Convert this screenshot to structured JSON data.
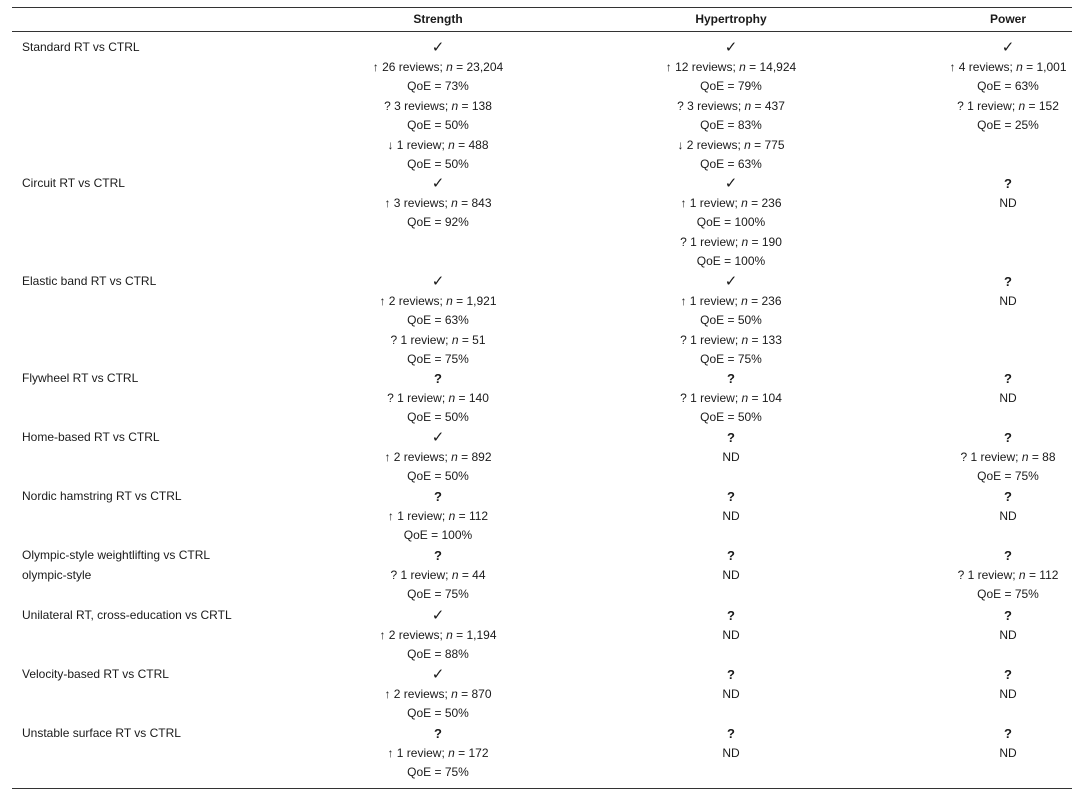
{
  "columns": [
    "Strength",
    "Hypertrophy",
    "Power"
  ],
  "rows": [
    {
      "label": [
        "Standard RT vs CTRL"
      ],
      "cells": [
        {
          "mark": "✓",
          "lines": [
            {
              "pre": "↑ 26 reviews; ",
              "n": "n",
              "post": " = 23,204"
            },
            {
              "text": "QoE = 73%"
            },
            {
              "pre": "? 3 reviews; ",
              "n": "n",
              "post": " = 138"
            },
            {
              "text": "QoE = 50%"
            },
            {
              "pre": "↓ 1 review; ",
              "n": "n",
              "post": " = 488"
            },
            {
              "text": "QoE = 50%"
            }
          ]
        },
        {
          "mark": "✓",
          "lines": [
            {
              "pre": "↑ 12 reviews; ",
              "n": "n",
              "post": " = 14,924"
            },
            {
              "text": "QoE = 79%"
            },
            {
              "pre": "? 3 reviews; ",
              "n": "n",
              "post": " = 437"
            },
            {
              "text": "QoE = 83%"
            },
            {
              "pre": "↓ 2 reviews; ",
              "n": "n",
              "post": " = 775"
            },
            {
              "text": "QoE = 63%"
            }
          ]
        },
        {
          "mark": "✓",
          "lines": [
            {
              "pre": "↑ 4 reviews; ",
              "n": "n",
              "post": " = 1,001"
            },
            {
              "text": "QoE = 63%"
            },
            {
              "pre": "? 1 review; ",
              "n": "n",
              "post": " = 152"
            },
            {
              "text": "QoE = 25%"
            }
          ]
        }
      ]
    },
    {
      "label": [
        "Circuit RT vs CTRL"
      ],
      "cells": [
        {
          "mark": "✓",
          "lines": [
            {
              "pre": "↑ 3 reviews; ",
              "n": "n",
              "post": " = 843"
            },
            {
              "text": "QoE = 92%"
            }
          ]
        },
        {
          "mark": "✓",
          "lines": [
            {
              "pre": "↑ 1 review; ",
              "n": "n",
              "post": " = 236"
            },
            {
              "text": "QoE = 100%"
            },
            {
              "pre": "? 1 review; ",
              "n": "n",
              "post": " = 190"
            },
            {
              "text": "QoE = 100%"
            }
          ]
        },
        {
          "mark": "?",
          "lines": [
            {
              "text": "ND"
            }
          ]
        }
      ]
    },
    {
      "label": [
        "Elastic band RT vs CTRL"
      ],
      "cells": [
        {
          "mark": "✓",
          "lines": [
            {
              "pre": "↑ 2 reviews; ",
              "n": "n",
              "post": " = 1,921"
            },
            {
              "text": "QoE = 63%"
            },
            {
              "pre": "? 1 review; ",
              "n": "n",
              "post": " = 51"
            },
            {
              "text": "QoE = 75%"
            }
          ]
        },
        {
          "mark": "✓",
          "lines": [
            {
              "pre": "↑ 1 review; ",
              "n": "n",
              "post": " = 236"
            },
            {
              "text": "QoE = 50%"
            },
            {
              "pre": "? 1 review; ",
              "n": "n",
              "post": " = 133"
            },
            {
              "text": "QoE = 75%"
            }
          ]
        },
        {
          "mark": "?",
          "lines": [
            {
              "text": "ND"
            }
          ]
        }
      ]
    },
    {
      "label": [
        "Flywheel RT vs CTRL"
      ],
      "cells": [
        {
          "mark": "?",
          "lines": [
            {
              "pre": "? 1 review; ",
              "n": "n",
              "post": " = 140"
            },
            {
              "text": "QoE = 50%"
            }
          ]
        },
        {
          "mark": "?",
          "lines": [
            {
              "pre": "? 1 review; ",
              "n": "n",
              "post": " = 104"
            },
            {
              "text": "QoE = 50%"
            }
          ]
        },
        {
          "mark": "?",
          "lines": [
            {
              "text": "ND"
            }
          ]
        }
      ]
    },
    {
      "label": [
        "Home-based RT vs CTRL"
      ],
      "cells": [
        {
          "mark": "✓",
          "lines": [
            {
              "pre": "↑ 2 reviews; ",
              "n": "n",
              "post": " = 892"
            },
            {
              "text": "QoE = 50%"
            }
          ]
        },
        {
          "mark": "?",
          "lines": [
            {
              "text": "ND"
            }
          ]
        },
        {
          "mark": "?",
          "lines": [
            {
              "pre": "? 1 review; ",
              "n": "n",
              "post": " = 88"
            },
            {
              "text": "QoE = 75%"
            }
          ]
        }
      ]
    },
    {
      "label": [
        "Nordic hamstring RT vs CTRL"
      ],
      "cells": [
        {
          "mark": "?",
          "lines": [
            {
              "pre": "↑ 1 review; ",
              "n": "n",
              "post": " = 112"
            },
            {
              "text": "QoE = 100%"
            }
          ]
        },
        {
          "mark": "?",
          "lines": [
            {
              "text": "ND"
            }
          ]
        },
        {
          "mark": "?",
          "lines": [
            {
              "text": "ND"
            }
          ]
        }
      ]
    },
    {
      "label": [
        "Olympic-style weightlifting vs CTRL",
        "olympic-style"
      ],
      "cells": [
        {
          "mark": "?",
          "lines": [
            {
              "pre": "? 1 review; ",
              "n": "n",
              "post": " = 44"
            },
            {
              "text": "QoE = 75%"
            }
          ]
        },
        {
          "mark": "?",
          "lines": [
            {
              "text": "ND"
            }
          ]
        },
        {
          "mark": "?",
          "lines": [
            {
              "pre": "? 1 review; ",
              "n": "n",
              "post": " = 112"
            },
            {
              "text": "QoE = 75%"
            }
          ]
        }
      ]
    },
    {
      "label": [
        "Unilateral RT, cross-education vs CRTL"
      ],
      "cells": [
        {
          "mark": "✓",
          "lines": [
            {
              "pre": "↑ 2 reviews; ",
              "n": "n",
              "post": " = 1,194"
            },
            {
              "text": "QoE = 88%"
            }
          ]
        },
        {
          "mark": "?",
          "lines": [
            {
              "text": "ND"
            }
          ]
        },
        {
          "mark": "?",
          "lines": [
            {
              "text": "ND"
            }
          ]
        }
      ]
    },
    {
      "label": [
        "Velocity-based RT vs CTRL"
      ],
      "cells": [
        {
          "mark": "✓",
          "lines": [
            {
              "pre": "↑ 2 reviews; ",
              "n": "n",
              "post": " = 870"
            },
            {
              "text": "QoE = 50%"
            }
          ]
        },
        {
          "mark": "?",
          "lines": [
            {
              "text": "ND"
            }
          ]
        },
        {
          "mark": "?",
          "lines": [
            {
              "text": "ND"
            }
          ]
        }
      ]
    },
    {
      "label": [
        "Unstable surface RT vs CTRL"
      ],
      "cells": [
        {
          "mark": "?",
          "lines": [
            {
              "pre": "↑ 1 review; ",
              "n": "n",
              "post": " = 172"
            },
            {
              "text": "QoE = 75%"
            }
          ]
        },
        {
          "mark": "?",
          "lines": [
            {
              "text": "ND"
            }
          ]
        },
        {
          "mark": "?",
          "lines": [
            {
              "text": "ND"
            }
          ]
        }
      ]
    }
  ]
}
